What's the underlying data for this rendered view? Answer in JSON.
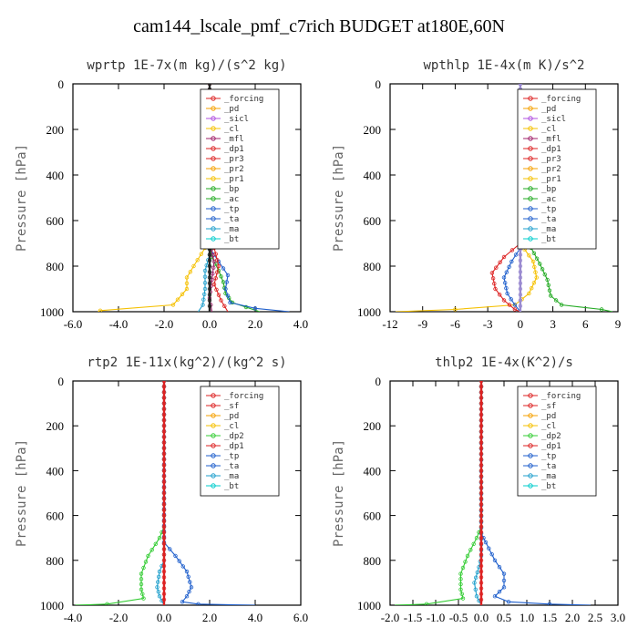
{
  "title": "cam144_lscale_pmf_c7rich  BUDGET at180E,60N",
  "chart_data": [
    {
      "type": "line",
      "title": "wprtp  1E-7x(m kg)/(s^2 kg)",
      "ylabel": "Pressure [hPa]",
      "xlim": [
        -6,
        4
      ],
      "xticks": [
        "-6.0",
        "-4.0",
        "-2.0",
        "0.0",
        "2.0",
        "4.0"
      ],
      "ylim": [
        0,
        1000
      ],
      "yticks": [
        "0",
        "200",
        "400",
        "600",
        "800",
        "1000"
      ],
      "legend": [
        "_forcing",
        "_pd",
        "_sicl",
        "_cl",
        "_mfl",
        "_dp1",
        "_pr3",
        "_pr2",
        "_pr1",
        "_bp",
        "_ac",
        "_tp",
        "_ta",
        "_ma",
        "_bt"
      ],
      "series": [
        {
          "name": "_pr1",
          "color": "#f5c000",
          "points": [
            [
              0,
              0
            ],
            [
              0,
              650
            ],
            [
              -0.2,
              720
            ],
            [
              -0.7,
              800
            ],
            [
              -1.0,
              850
            ],
            [
              -1.0,
              900
            ],
            [
              -1.6,
              970
            ],
            [
              -4.8,
              995
            ],
            [
              -4.9,
              1000
            ]
          ]
        },
        {
          "name": "_ac",
          "color": "#22aa22",
          "points": [
            [
              0,
              0
            ],
            [
              0,
              700
            ],
            [
              0.1,
              760
            ],
            [
              0.4,
              820
            ],
            [
              0.6,
              870
            ],
            [
              0.7,
              920
            ],
            [
              1.0,
              960
            ],
            [
              1.6,
              980
            ],
            [
              2.2,
              1000
            ]
          ]
        },
        {
          "name": "_tp",
          "color": "#1f5fcc",
          "points": [
            [
              0,
              0
            ],
            [
              0,
              720
            ],
            [
              0.4,
              780
            ],
            [
              0.8,
              840
            ],
            [
              0.7,
              900
            ],
            [
              0.9,
              960
            ],
            [
              2.0,
              985
            ],
            [
              3.5,
              1000
            ]
          ]
        },
        {
          "name": "_ma",
          "color": "#1f9fcc",
          "points": [
            [
              0,
              0
            ],
            [
              0,
              750
            ],
            [
              -0.2,
              820
            ],
            [
              -0.2,
              900
            ],
            [
              -0.3,
              970
            ],
            [
              -0.5,
              1000
            ]
          ]
        },
        {
          "name": "_mfl",
          "color": "#a0206a",
          "points": [
            [
              0,
              0
            ],
            [
              0,
              700
            ],
            [
              0.2,
              780
            ],
            [
              0.1,
              860
            ],
            [
              0,
              940
            ],
            [
              0.1,
              1000
            ]
          ]
        },
        {
          "name": "_dp1",
          "color": "#dd2222",
          "points": [
            [
              0,
              0
            ],
            [
              0,
              650
            ],
            [
              0.2,
              720
            ],
            [
              0.4,
              800
            ],
            [
              0.2,
              880
            ],
            [
              0.5,
              950
            ],
            [
              0.8,
              1000
            ]
          ]
        },
        {
          "name": "_forcing",
          "color": "#222222",
          "points": [
            [
              0,
              0
            ],
            [
              0,
              1000
            ]
          ]
        }
      ]
    },
    {
      "type": "line",
      "title": "wpthlp  1E-4x(m K)/s^2",
      "ylabel": "Pressure [hPa]",
      "xlim": [
        -12,
        9
      ],
      "xticks": [
        "-12",
        "-9",
        "-6",
        "-3",
        "0",
        "3",
        "6",
        "9"
      ],
      "ylim": [
        0,
        1000
      ],
      "yticks": [
        "0",
        "200",
        "400",
        "600",
        "800",
        "1000"
      ],
      "legend": [
        "_forcing",
        "_pd",
        "_sicl",
        "_cl",
        "_mfl",
        "_dp1",
        "_pr3",
        "_pr2",
        "_pr1",
        "_bp",
        "_ac",
        "_tp",
        "_ta",
        "_ma",
        "_bt"
      ],
      "series": [
        {
          "name": "_ac",
          "color": "#22aa22",
          "points": [
            [
              0,
              0
            ],
            [
              0,
              650
            ],
            [
              1.0,
              720
            ],
            [
              1.8,
              790
            ],
            [
              2.5,
              860
            ],
            [
              2.8,
              930
            ],
            [
              3.8,
              970
            ],
            [
              7.5,
              990
            ],
            [
              8.5,
              1000
            ]
          ]
        },
        {
          "name": "_pr1",
          "color": "#f5c000",
          "points": [
            [
              0,
              0
            ],
            [
              0,
              700
            ],
            [
              1.2,
              780
            ],
            [
              1.5,
              850
            ],
            [
              0.8,
              920
            ],
            [
              -0.5,
              970
            ],
            [
              -6,
              990
            ],
            [
              -11.5,
              1000
            ]
          ]
        },
        {
          "name": "_dp1",
          "color": "#dd2222",
          "points": [
            [
              0,
              0
            ],
            [
              0,
              700
            ],
            [
              -1.5,
              760
            ],
            [
              -2.6,
              830
            ],
            [
              -2.3,
              900
            ],
            [
              -1.5,
              950
            ],
            [
              -0.5,
              990
            ],
            [
              0,
              1000
            ]
          ]
        },
        {
          "name": "_tp",
          "color": "#1f5fcc",
          "points": [
            [
              0,
              0
            ],
            [
              0,
              720
            ],
            [
              -0.8,
              780
            ],
            [
              -1.5,
              850
            ],
            [
              -1.2,
              920
            ],
            [
              -0.5,
              970
            ],
            [
              0,
              1000
            ]
          ]
        },
        {
          "name": "_forcing",
          "color": "#9a8ad0",
          "points": [
            [
              0,
              0
            ],
            [
              0,
              1000
            ]
          ]
        }
      ]
    },
    {
      "type": "line",
      "title": "rtp2  1E-11x(kg^2)/(kg^2 s)",
      "ylabel": "Pressure [hPa]",
      "xlim": [
        -4,
        6
      ],
      "xticks": [
        "-4.0",
        "-2.0",
        "0.0",
        "2.0",
        "4.0",
        "6.0"
      ],
      "ylim": [
        0,
        1000
      ],
      "yticks": [
        "0",
        "200",
        "400",
        "600",
        "800",
        "1000"
      ],
      "legend": [
        "_forcing",
        "_sf",
        "_pd",
        "_cl",
        "_dp2",
        "_dp1",
        "_tp",
        "_ta",
        "_ma",
        "_bt"
      ],
      "series": [
        {
          "name": "_dp1",
          "color": "#33cc33",
          "points": [
            [
              0,
              0
            ],
            [
              0,
              650
            ],
            [
              -0.2,
              700
            ],
            [
              -0.7,
              780
            ],
            [
              -1.0,
              860
            ],
            [
              -1.0,
              930
            ],
            [
              -0.9,
              970
            ],
            [
              -2.5,
              995
            ],
            [
              -3.9,
              1000
            ]
          ]
        },
        {
          "name": "_tp",
          "color": "#1f5fcc",
          "points": [
            [
              0,
              0
            ],
            [
              0,
              720
            ],
            [
              0.5,
              780
            ],
            [
              1.0,
              850
            ],
            [
              1.2,
              920
            ],
            [
              1.0,
              960
            ],
            [
              0.8,
              985
            ],
            [
              1.5,
              995
            ],
            [
              4.0,
              1000
            ]
          ]
        },
        {
          "name": "_ma",
          "color": "#1f9fcc",
          "points": [
            [
              0,
              0
            ],
            [
              0,
              800
            ],
            [
              -0.2,
              850
            ],
            [
              -0.3,
              920
            ],
            [
              -0.2,
              960
            ],
            [
              0,
              1000
            ]
          ]
        },
        {
          "name": "_forcing",
          "color": "#dd2222",
          "points": [
            [
              0,
              0
            ],
            [
              0,
              1000
            ]
          ]
        }
      ]
    },
    {
      "type": "line",
      "title": "thlp2  1E-4x(K^2)/s",
      "ylabel": "Pressure [hPa]",
      "xlim": [
        -2,
        3
      ],
      "xticks": [
        "-2.0",
        "-1.5",
        "-1.0",
        "-0.5",
        "0.0",
        "0.5",
        "1.0",
        "1.5",
        "2.0",
        "2.5",
        "3.0"
      ],
      "ylim": [
        0,
        1000
      ],
      "yticks": [
        "0",
        "200",
        "400",
        "600",
        "800",
        "1000"
      ],
      "legend": [
        "_forcing",
        "_sf",
        "_pd",
        "_cl",
        "_dp2",
        "_dp1",
        "_tp",
        "_ta",
        "_ma",
        "_bt"
      ],
      "series": [
        {
          "name": "_dp1",
          "color": "#33cc33",
          "points": [
            [
              0,
              0
            ],
            [
              0,
              650
            ],
            [
              -0.1,
              700
            ],
            [
              -0.3,
              780
            ],
            [
              -0.45,
              860
            ],
            [
              -0.45,
              930
            ],
            [
              -0.4,
              970
            ],
            [
              -1.2,
              995
            ],
            [
              -1.9,
              1000
            ]
          ]
        },
        {
          "name": "_tp",
          "color": "#1f5fcc",
          "points": [
            [
              0,
              0
            ],
            [
              0,
              680
            ],
            [
              0.1,
              720
            ],
            [
              0.3,
              800
            ],
            [
              0.5,
              860
            ],
            [
              0.5,
              920
            ],
            [
              0.3,
              960
            ],
            [
              0.6,
              985
            ],
            [
              1.5,
              995
            ],
            [
              2.4,
              1000
            ]
          ]
        },
        {
          "name": "_ma",
          "color": "#1f9fcc",
          "points": [
            [
              0,
              0
            ],
            [
              0,
              780
            ],
            [
              -0.05,
              830
            ],
            [
              -0.15,
              900
            ],
            [
              -0.1,
              960
            ],
            [
              0,
              1000
            ]
          ]
        },
        {
          "name": "_forcing",
          "color": "#dd2222",
          "points": [
            [
              0,
              0
            ],
            [
              0,
              1000
            ]
          ]
        }
      ]
    }
  ]
}
